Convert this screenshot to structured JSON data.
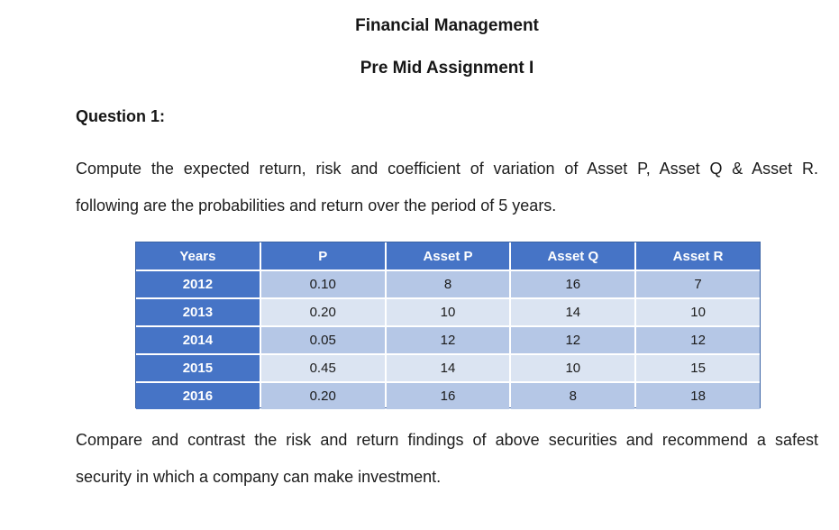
{
  "doc": {
    "title": "Financial Management",
    "subtitle": "Pre Mid Assignment I",
    "question_label": "Question 1:",
    "intro_line1": "Compute the expected return, risk and coefficient of variation of Asset P, Asset Q & Asset R.",
    "intro_line2": "following are the probabilities and return over the period of 5 years.",
    "closing_line1": "Compare and contrast the risk and return findings of above securities and recommend a safest",
    "closing_line2": "security in which a company can make investment."
  },
  "table": {
    "headers": [
      "Years",
      "P",
      "Asset P",
      "Asset Q",
      "Asset R"
    ],
    "rows": [
      {
        "year": "2012",
        "values": [
          "0.10",
          "8",
          "16",
          "7"
        ]
      },
      {
        "year": "2013",
        "values": [
          "0.20",
          "10",
          "14",
          "10"
        ]
      },
      {
        "year": "2014",
        "values": [
          "0.05",
          "12",
          "12",
          "12"
        ]
      },
      {
        "year": "2015",
        "values": [
          "0.45",
          "14",
          "10",
          "15"
        ]
      },
      {
        "year": "2016",
        "values": [
          "0.20",
          "16",
          "8",
          "18"
        ]
      }
    ]
  },
  "colors": {
    "header_blue": "#4674C6",
    "band_dark": "#B5C7E6",
    "band_light": "#DBE4F2",
    "table_border": "#3A62A4",
    "text": "#1C1C1C"
  }
}
